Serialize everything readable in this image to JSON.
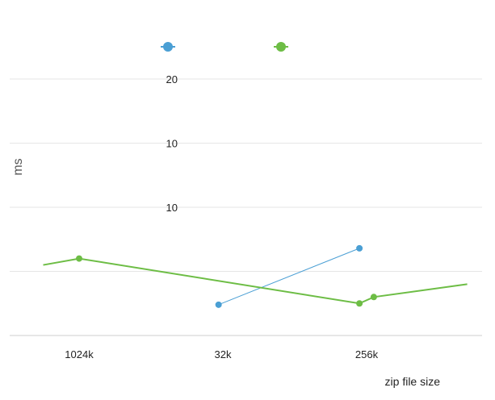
{
  "chart_data": {
    "type": "line",
    "title": "",
    "xlabel": "zip file size",
    "ylabel": "ms",
    "x_ticks": [
      "1024k",
      "32k",
      "256k"
    ],
    "y_ticks": [
      "",
      "",
      "10",
      "10",
      "20"
    ],
    "ylim": [
      0,
      20
    ],
    "grid": true,
    "legend_position": "top-center",
    "series": [
      {
        "color": "#4a9fd4",
        "points": [
          [
            0.97,
            2.4
          ],
          [
            1.95,
            6.8
          ]
        ]
      },
      {
        "color": "#6dbd45",
        "points": [
          [
            -0.25,
            5.5
          ],
          [
            0.0,
            6.0
          ],
          [
            1.95,
            2.5
          ],
          [
            2.05,
            3.0
          ],
          [
            2.7,
            4.0
          ]
        ]
      }
    ],
    "colors": {
      "series1": "#4a9fd4",
      "series2": "#6dbd45",
      "grid": "#e6e6e6",
      "axis": "#cfcfcf"
    }
  }
}
